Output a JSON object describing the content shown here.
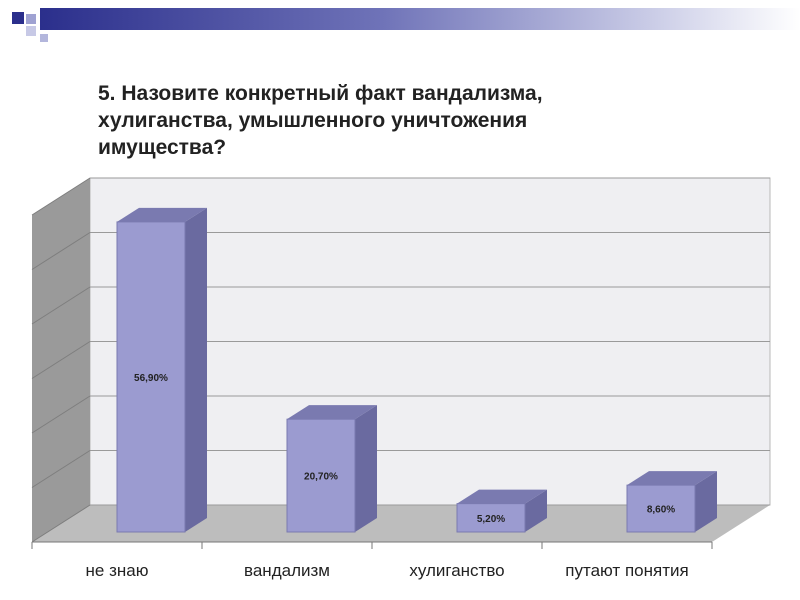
{
  "slide": {
    "title": "5. Назовите конкретный факт вандализма, хулиганства, умышленного уничтожения имущества?"
  },
  "colors": {
    "bar_front": "#9b9bd0",
    "bar_top": "#7a7ab0",
    "bar_side": "#6a6aa0",
    "back_wall": "#efeff2",
    "side_wall": "#9a9a9a",
    "floor": "#bdbdbd",
    "accent": "#2b2f8c"
  },
  "chart_data": {
    "type": "bar",
    "title": "5. Назовите конкретный факт вандализма, хулиганства, умышленного уничтожения имущества?",
    "categories": [
      "не знаю",
      "вандализм",
      "хулиганство",
      "путают понятия"
    ],
    "values": [
      56.9,
      20.7,
      5.2,
      8.6
    ],
    "data_labels": [
      "56,90%",
      "20,70%",
      "5,20%",
      "8,60%"
    ],
    "ylim": [
      0,
      60
    ],
    "grid": true,
    "three_d": true,
    "legend": "none"
  }
}
